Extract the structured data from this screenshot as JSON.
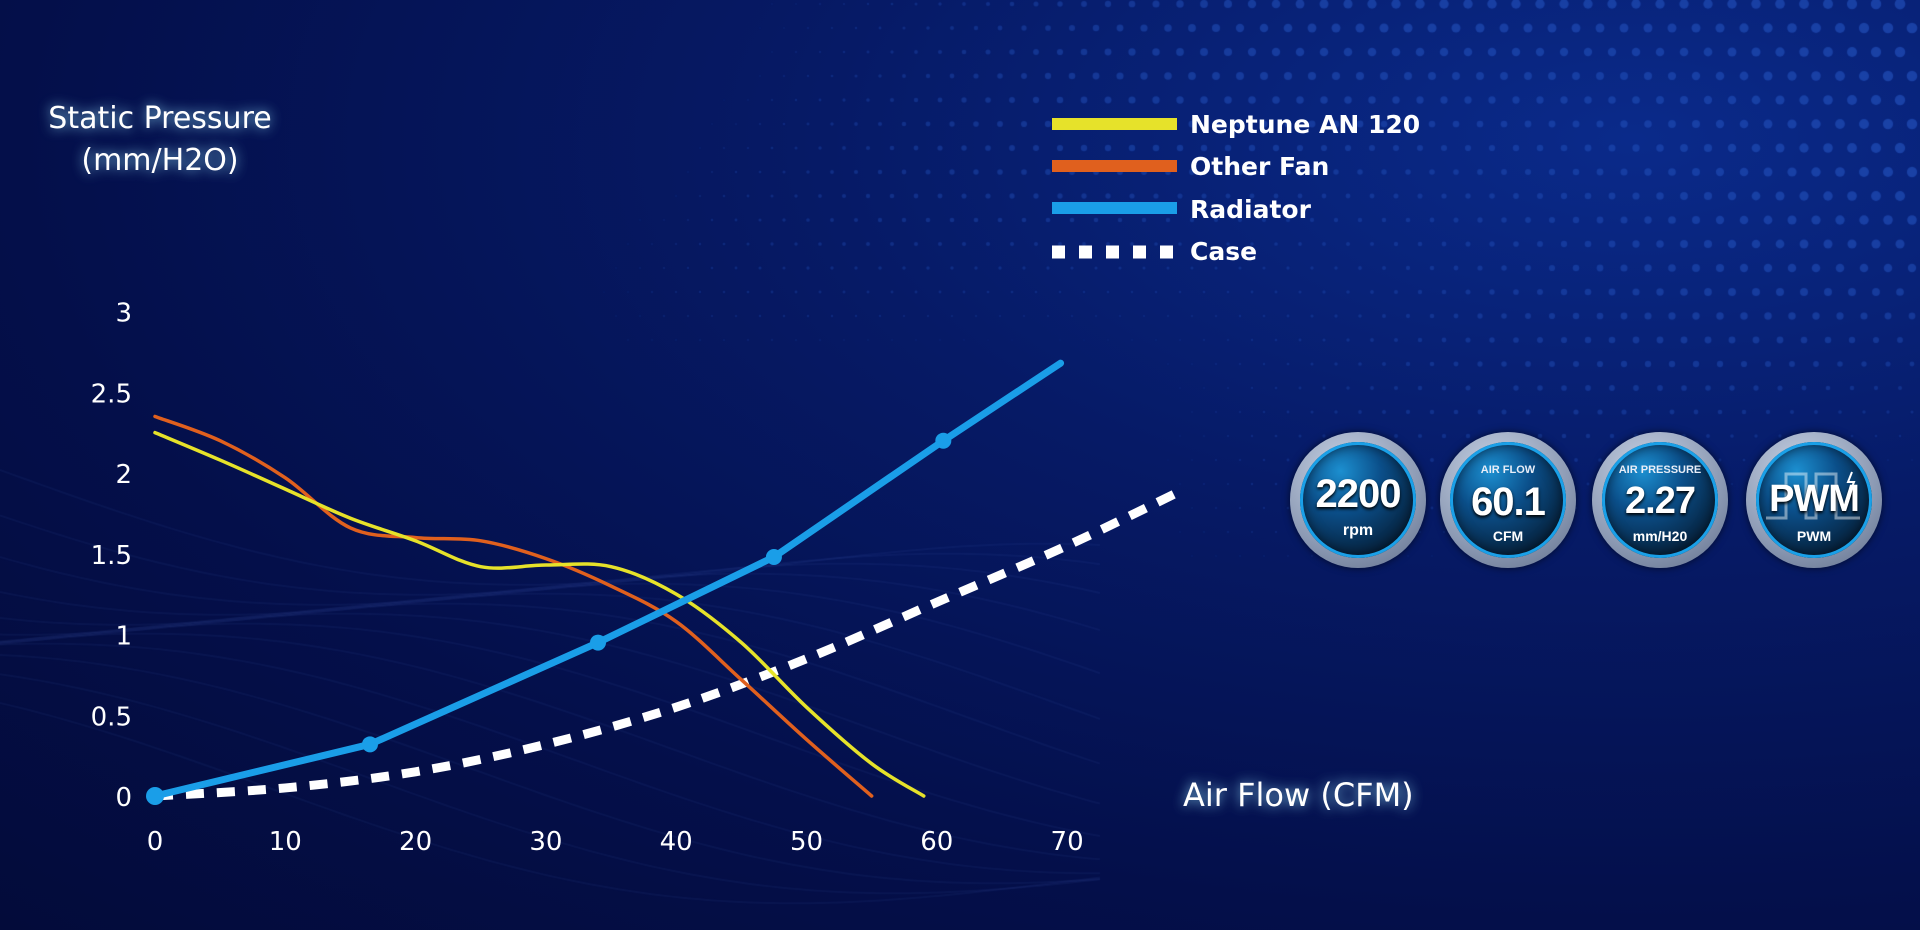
{
  "chart_data": {
    "type": "line",
    "ylabel_line1": "Static Pressure",
    "ylabel_line2": "(mm/H2O)",
    "xlabel": "Air Flow (CFM)",
    "xlim": [
      0,
      75
    ],
    "ylim": [
      0,
      3.3
    ],
    "x_ticks": [
      "0",
      "10",
      "20",
      "30",
      "40",
      "50",
      "60",
      "70"
    ],
    "x_tick_values": [
      0,
      10,
      20,
      30,
      40,
      50,
      60,
      70
    ],
    "y_ticks": [
      "0",
      "0.5",
      "1",
      "1.5",
      "2",
      "2.5",
      "3"
    ],
    "y_tick_values": [
      0,
      0.5,
      1,
      1.5,
      2,
      2.5,
      3
    ],
    "series": [
      {
        "name": "Neptune AN 120",
        "color": "#e6e22a",
        "style": "solid",
        "x": [
          0,
          5,
          10,
          15,
          20,
          25,
          30,
          35,
          40,
          45,
          50,
          55,
          59
        ],
        "y": [
          2.25,
          2.08,
          1.9,
          1.72,
          1.58,
          1.42,
          1.43,
          1.42,
          1.25,
          0.95,
          0.55,
          0.2,
          0
        ]
      },
      {
        "name": "Other Fan",
        "color": "#e0601e",
        "style": "solid",
        "x": [
          0,
          5,
          10,
          15,
          20,
          25,
          30,
          35,
          40,
          45,
          50,
          55
        ],
        "y": [
          2.35,
          2.2,
          1.97,
          1.66,
          1.6,
          1.58,
          1.47,
          1.3,
          1.08,
          0.72,
          0.35,
          0
        ]
      },
      {
        "name": "Radiator",
        "color": "#1a9ee8",
        "style": "solid-markers",
        "x": [
          0,
          16.5,
          34,
          47.5,
          60.5,
          69.5
        ],
        "y": [
          0,
          0.32,
          0.95,
          1.48,
          2.2,
          2.68
        ]
      },
      {
        "name": "Case",
        "color": "#ffffff",
        "style": "dashed",
        "x": [
          0,
          10,
          20,
          30,
          40,
          50,
          60,
          70,
          78.5
        ],
        "y": [
          0,
          0.05,
          0.15,
          0.32,
          0.55,
          0.85,
          1.2,
          1.55,
          1.88
        ]
      }
    ],
    "legend_position": "top-center"
  },
  "specs": [
    {
      "top": "",
      "value": "2200",
      "unit": "rpm"
    },
    {
      "top": "AIR FLOW",
      "value": "60.1",
      "unit": "CFM"
    },
    {
      "top": "AIR PRESSURE",
      "value": "2.27",
      "unit": "mm/H20"
    },
    {
      "top": "",
      "value": "PWM",
      "unit": "PWM"
    }
  ]
}
